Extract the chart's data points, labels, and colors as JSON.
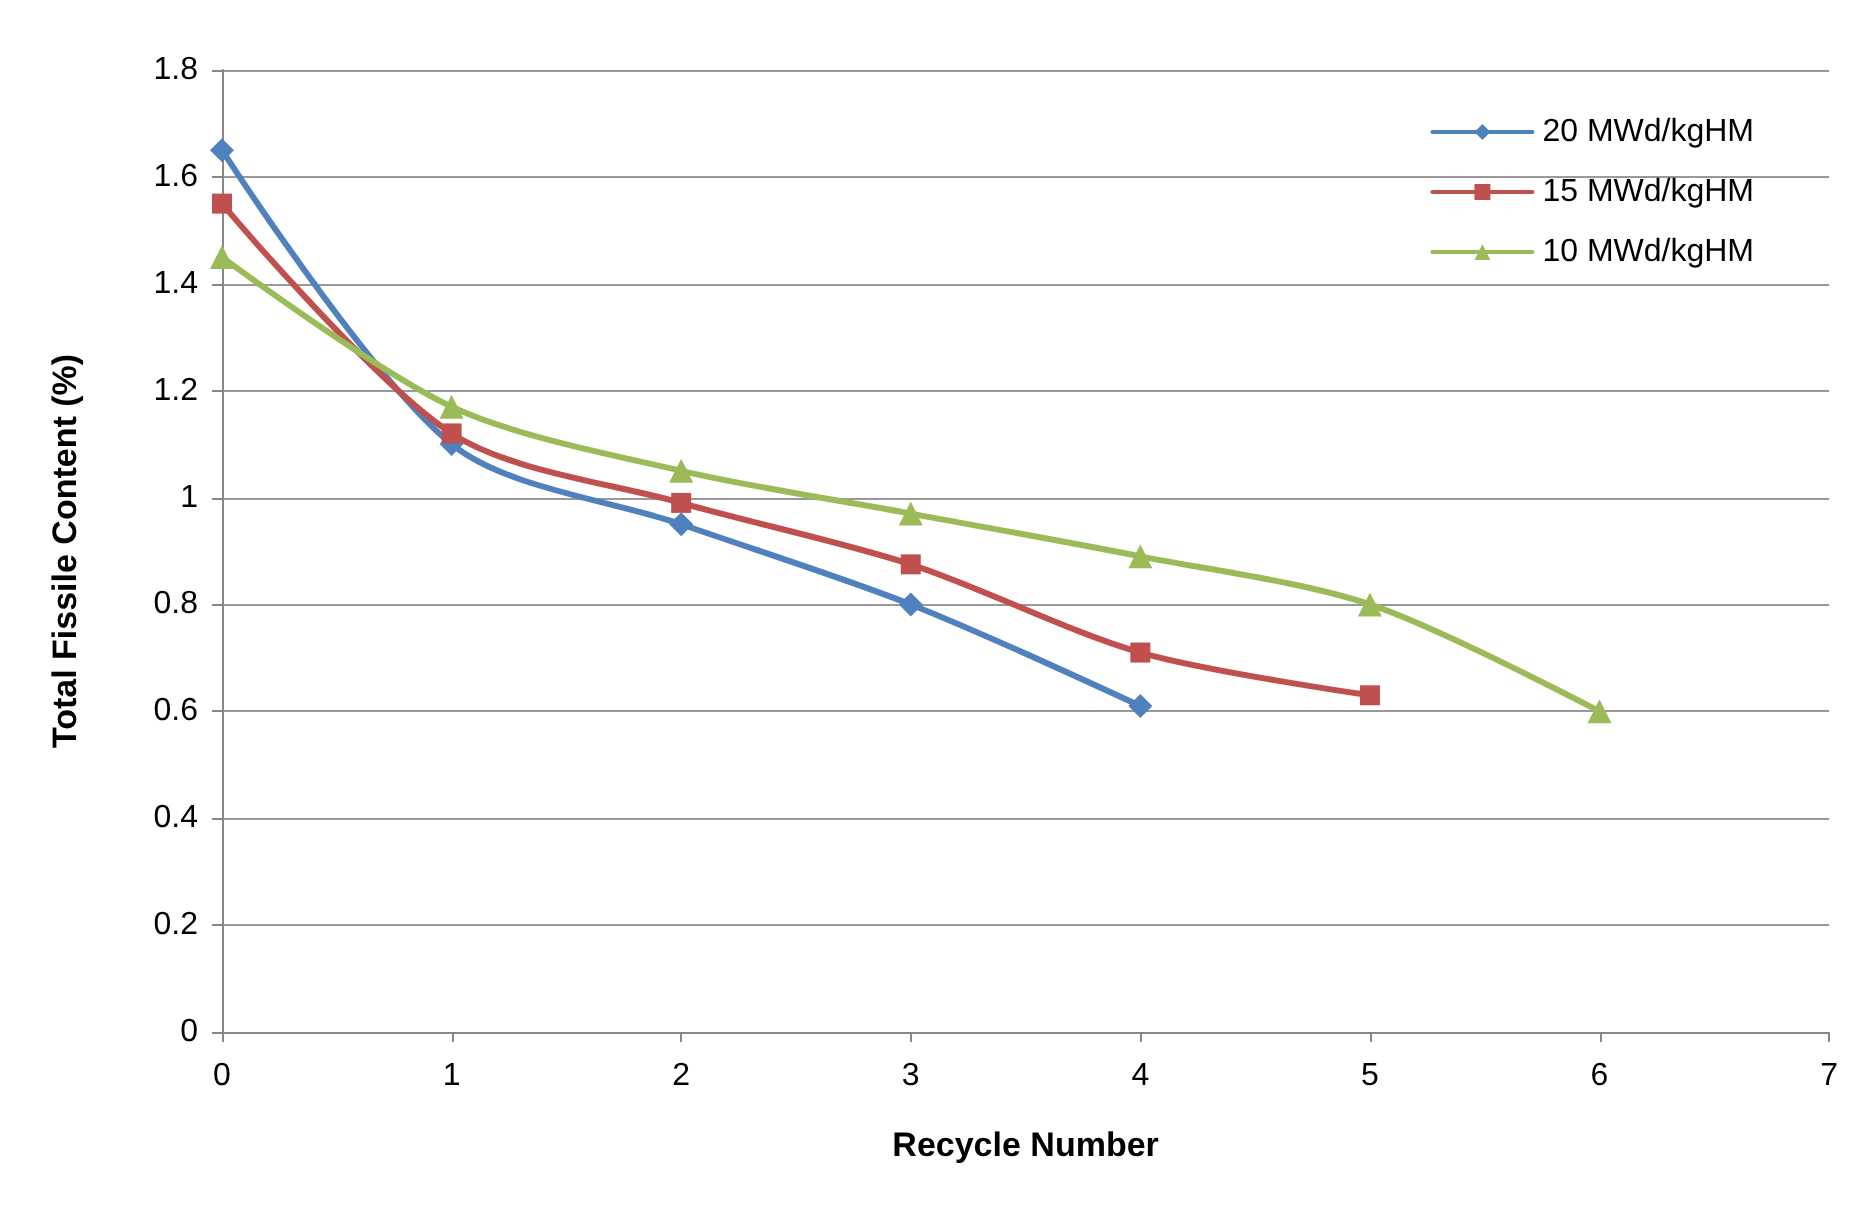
{
  "chart_data": {
    "type": "line",
    "xlabel": "Recycle Number",
    "ylabel": "Total Fissile Content (%)",
    "xlim": [
      0,
      7
    ],
    "xticks": [
      0,
      1,
      2,
      3,
      4,
      5,
      6,
      7
    ],
    "ylim": [
      0,
      1.8
    ],
    "yticks": [
      0,
      0.2,
      0.4,
      0.6,
      0.8,
      1,
      1.2,
      1.4,
      1.6,
      1.8
    ],
    "grid": "y",
    "legend": "top right",
    "line_style": "solid",
    "series": [
      {
        "name": "20 MWd/kgHM",
        "color": "#4f81bd",
        "marker": "diamond",
        "x": [
          0,
          1,
          2,
          3,
          4
        ],
        "values": [
          1.65,
          1.1,
          0.95,
          0.8,
          0.61
        ]
      },
      {
        "name": "15 MWd/kgHM",
        "color": "#c0504d",
        "marker": "square",
        "x": [
          0,
          1,
          2,
          3,
          4,
          5
        ],
        "values": [
          1.55,
          1.12,
          0.99,
          0.875,
          0.71,
          0.63
        ]
      },
      {
        "name": "10 MWd/kgHM",
        "color": "#9bbb59",
        "marker": "triangle",
        "x": [
          0,
          1,
          2,
          3,
          4,
          5,
          6
        ],
        "values": [
          1.45,
          1.17,
          1.05,
          0.97,
          0.89,
          0.8,
          0.6
        ]
      }
    ]
  }
}
